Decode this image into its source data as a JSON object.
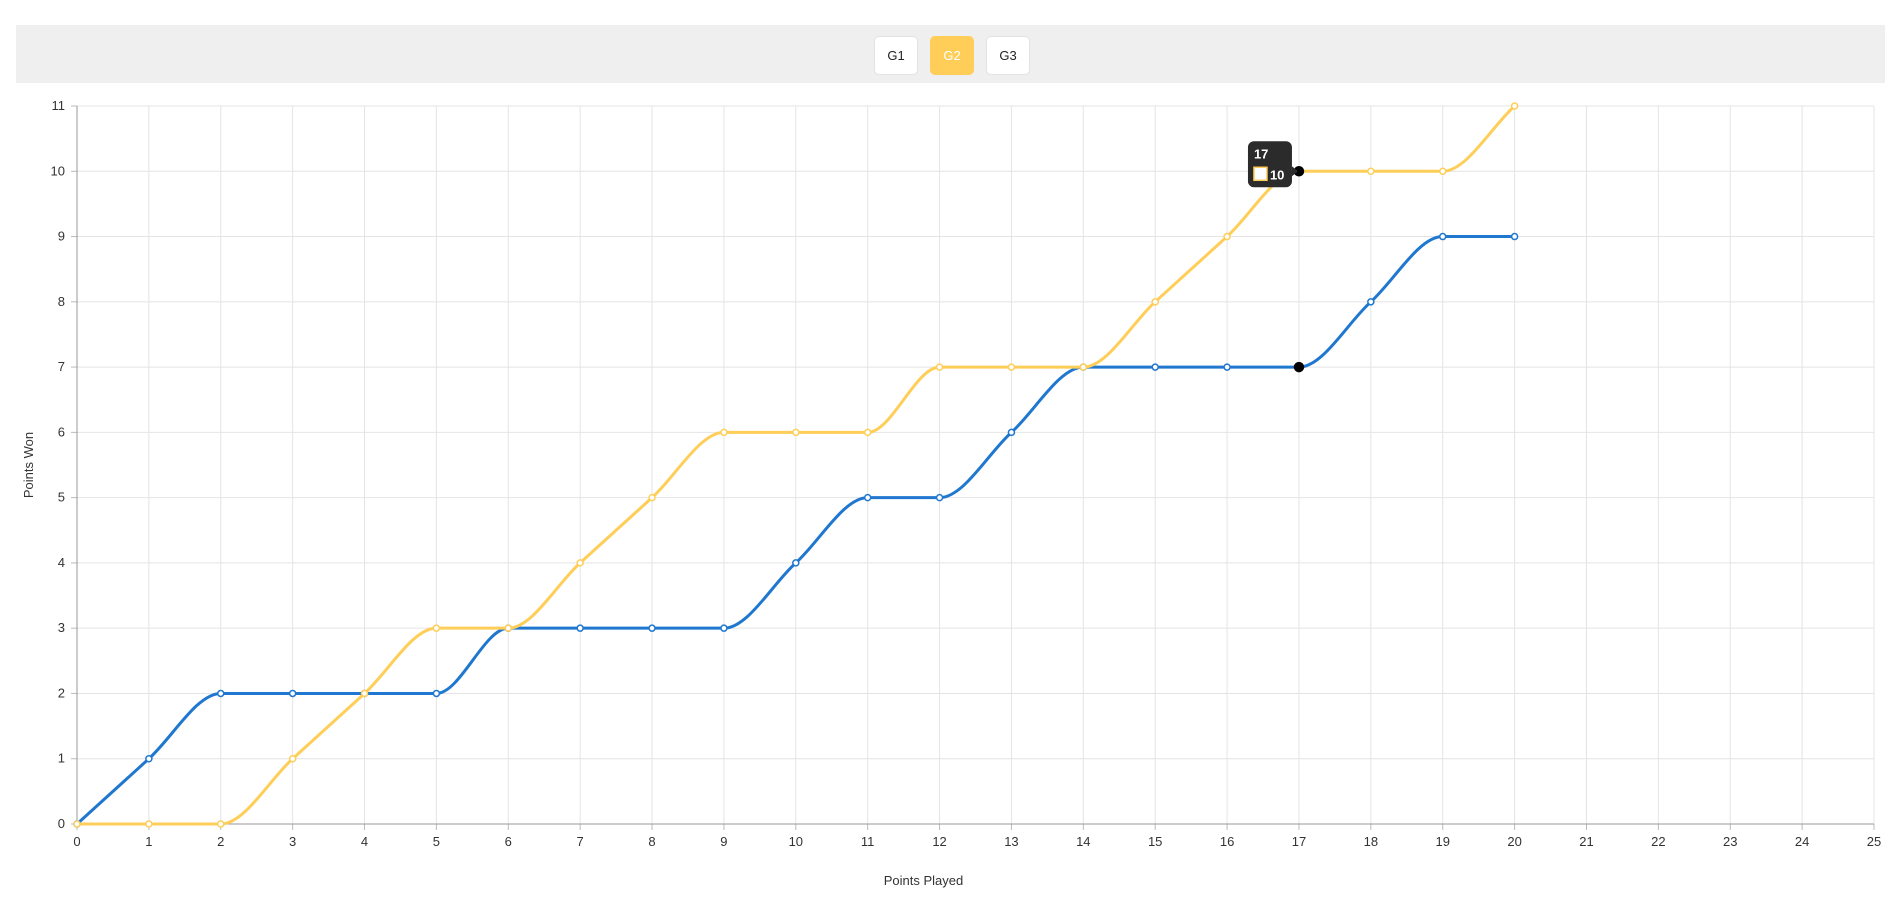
{
  "tabs": [
    {
      "label": "G1",
      "active": false
    },
    {
      "label": "G2",
      "active": true
    },
    {
      "label": "G3",
      "active": false
    }
  ],
  "colors": {
    "series_1": "#1f77d0",
    "series_2": "#fece58",
    "active_tab": "#fece58",
    "tooltip_bg": "#2b2b2b"
  },
  "tooltip": {
    "title": "17",
    "value": "10"
  },
  "chart_data": {
    "type": "line",
    "xlabel": "Points Played",
    "ylabel": "Points Won",
    "xlim": [
      0,
      25
    ],
    "ylim": [
      0,
      11
    ],
    "grid": true,
    "x": [
      0,
      1,
      2,
      3,
      4,
      5,
      6,
      7,
      8,
      9,
      10,
      11,
      12,
      13,
      14,
      15,
      16,
      17,
      18,
      19,
      20
    ],
    "series": [
      {
        "color": "#1f77d0",
        "values": [
          0,
          1,
          2,
          2,
          2,
          2,
          3,
          3,
          3,
          3,
          4,
          5,
          5,
          6,
          7,
          7,
          7,
          7,
          8,
          9,
          9
        ]
      },
      {
        "color": "#fece58",
        "values": [
          0,
          0,
          0,
          1,
          2,
          3,
          3,
          4,
          5,
          6,
          6,
          6,
          7,
          7,
          7,
          8,
          9,
          10,
          10,
          10,
          11
        ]
      }
    ],
    "highlight_x": 17
  }
}
